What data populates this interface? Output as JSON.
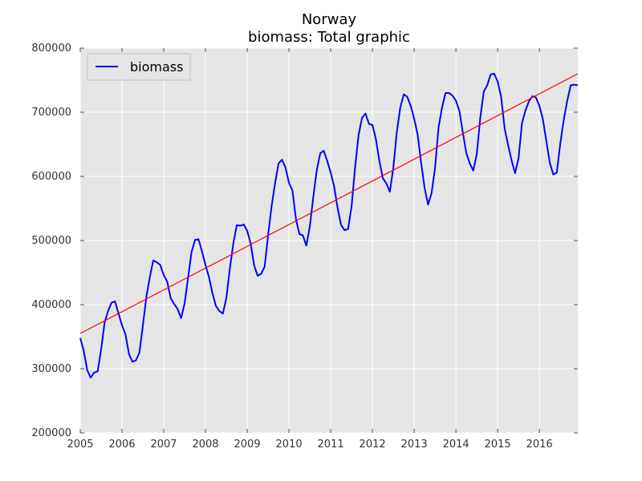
{
  "chart_data": {
    "type": "line",
    "title": "Norway",
    "subtitle": "biomass: Total graphic",
    "xlim": [
      2005,
      2016.92
    ],
    "ylim": [
      200000,
      800000
    ],
    "x_ticks": [
      2005,
      2006,
      2007,
      2008,
      2009,
      2010,
      2011,
      2012,
      2013,
      2014,
      2015,
      2016
    ],
    "x_tick_labels": [
      "2005",
      "2006",
      "2007",
      "2008",
      "2009",
      "2010",
      "2011",
      "2012",
      "2013",
      "2014",
      "2015",
      "2016"
    ],
    "y_ticks": [
      200000,
      300000,
      400000,
      500000,
      600000,
      700000,
      800000
    ],
    "y_tick_labels": [
      "200000",
      "300000",
      "400000",
      "500000",
      "600000",
      "700000",
      "800000"
    ],
    "grid": true,
    "legend": {
      "position": "top-left",
      "entries": [
        "biomass"
      ]
    },
    "series": [
      {
        "name": "biomass",
        "color": "#0000ff",
        "x_start": 2005,
        "x_step_months": 1,
        "values": [
          348000,
          328000,
          298000,
          286000,
          294000,
          296000,
          330000,
          372000,
          390000,
          403000,
          405000,
          386000,
          368000,
          354000,
          323000,
          311000,
          313000,
          325000,
          367000,
          412000,
          443000,
          469000,
          466000,
          462000,
          446000,
          436000,
          410000,
          401000,
          393000,
          379000,
          402000,
          442000,
          482000,
          501000,
          502000,
          483000,
          462000,
          443000,
          418000,
          398000,
          390000,
          386000,
          410000,
          456000,
          495000,
          524000,
          523000,
          525000,
          515000,
          495000,
          461000,
          445000,
          448000,
          459000,
          508000,
          553000,
          589000,
          620000,
          626000,
          614000,
          590000,
          578000,
          534000,
          510000,
          508000,
          492000,
          522000,
          568000,
          610000,
          636000,
          640000,
          624000,
          606000,
          584000,
          550000,
          524000,
          516000,
          518000,
          553000,
          613000,
          664000,
          691000,
          698000,
          682000,
          680000,
          658000,
          624000,
          597000,
          589000,
          576000,
          613000,
          669000,
          707000,
          728000,
          724000,
          710000,
          690000,
          665000,
          621000,
          582000,
          556000,
          574000,
          613000,
          676000,
          707000,
          730000,
          730000,
          726000,
          718000,
          702000,
          668000,
          636000,
          620000,
          609000,
          635000,
          691000,
          732000,
          742000,
          759000,
          760000,
          748000,
          724000,
          675000,
          649000,
          625000,
          605000,
          628000,
          683000,
          703000,
          717000,
          725000,
          723000,
          710000,
          689000,
          655000,
          621000,
          603000,
          606000,
          651000,
          688000,
          718000,
          742000,
          743000,
          742000
        ]
      },
      {
        "color": "#ff0000",
        "type": "trend",
        "x": [
          2005,
          2016.92
        ],
        "y": [
          355000,
          760000
        ]
      }
    ]
  }
}
